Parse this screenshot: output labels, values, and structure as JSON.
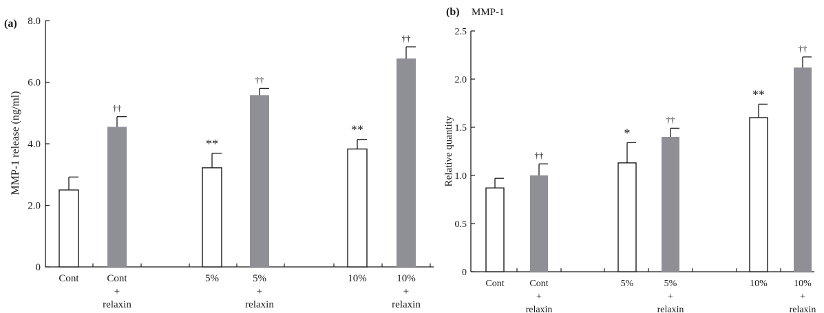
{
  "chart_data": [
    {
      "id": "a",
      "type": "bar",
      "panel_label": "(a)",
      "title": "",
      "xlabel": "",
      "ylabel": "MMP-1 release (ng/ml)",
      "ylim": [
        0,
        8.0
      ],
      "yticks": [
        "0",
        "2.0",
        "4.0",
        "6.0",
        "8.0"
      ],
      "grid": false,
      "legend": "none",
      "categories": [
        [
          "Cont"
        ],
        [
          "Cont",
          "+",
          "relaxin"
        ],
        [
          "5%"
        ],
        [
          "5%",
          "+",
          "relaxin"
        ],
        [
          "10%"
        ],
        [
          "10%",
          "+",
          "relaxin"
        ]
      ],
      "values": [
        2.5,
        4.55,
        3.22,
        5.58,
        3.83,
        6.77
      ],
      "errors": [
        0.42,
        0.33,
        0.47,
        0.22,
        0.31,
        0.38
      ],
      "fills": [
        "white",
        "gray",
        "white",
        "gray",
        "white",
        "gray"
      ],
      "annotations": [
        "",
        "††",
        "**",
        "††",
        "**",
        "††"
      ]
    },
    {
      "id": "b",
      "type": "bar",
      "panel_label": "(b)",
      "title": "MMP-1",
      "xlabel": "",
      "ylabel": "Relative quantity",
      "ylim": [
        0,
        2.5
      ],
      "yticks": [
        "0",
        "0.5",
        "1.0",
        "1.5",
        "2.0",
        "2.5"
      ],
      "grid": false,
      "legend": "none",
      "categories": [
        [
          "Cont"
        ],
        [
          "Cont",
          "+",
          "relaxin"
        ],
        [
          "5%"
        ],
        [
          "5%",
          "+",
          "relaxin"
        ],
        [
          "10%"
        ],
        [
          "10%",
          "+",
          "relaxin"
        ]
      ],
      "values": [
        0.87,
        1.0,
        1.13,
        1.4,
        1.6,
        2.12
      ],
      "errors": [
        0.1,
        0.12,
        0.21,
        0.09,
        0.14,
        0.11
      ],
      "fills": [
        "white",
        "gray",
        "white",
        "gray",
        "white",
        "gray"
      ],
      "annotations": [
        "",
        "††",
        "*",
        "††",
        "**",
        "††"
      ]
    }
  ],
  "colors": {
    "bar_gray": "#8f9096",
    "bar_white": "#ffffff",
    "ink": "#1a1a1a"
  }
}
